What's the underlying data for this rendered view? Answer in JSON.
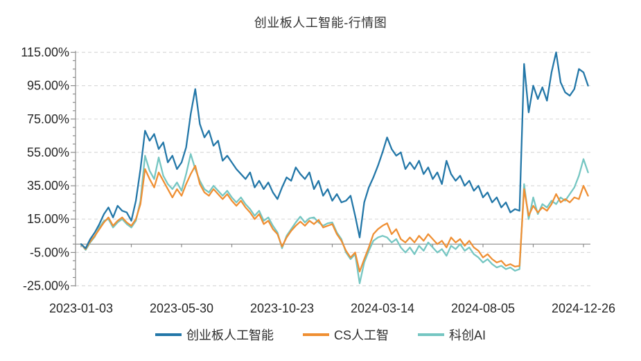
{
  "title": "创业板人工智能-行情图",
  "chart_data": {
    "type": "line",
    "title": "创业板人工智能-行情图",
    "x_tick_labels": [
      "2023-01-03",
      "2023-05-30",
      "2023-10-23",
      "2024-03-14",
      "2024-08-05",
      "2024-12-26"
    ],
    "x_tick_data_indices": [
      0,
      22,
      44,
      66,
      88,
      110
    ],
    "y_tick_labels": [
      "115.00%",
      "95.00%",
      "75.00%",
      "55.00%",
      "35.00%",
      "15.00%",
      "-5.00%",
      "-25.00%"
    ],
    "ylim": [
      -25,
      115
    ],
    "y_major_step": 20,
    "y_minor_step": 5,
    "grid": "horizontal-dashed",
    "zero_line": true,
    "legend_position": "bottom",
    "colors": {
      "grid": "#DADADA",
      "axis": "#8C8C8C",
      "tick_text": "#262626"
    },
    "series": [
      {
        "name": "创业板人工智能",
        "color": "#2377A8",
        "values": [
          0,
          -2.5,
          3,
          7,
          12,
          18,
          22,
          16,
          23,
          20,
          19,
          14,
          26,
          45,
          68,
          62,
          66,
          57,
          61,
          49,
          53,
          45,
          49,
          58,
          78,
          93,
          72,
          64,
          68,
          59,
          62,
          50,
          53,
          49,
          45,
          42,
          39,
          43,
          34,
          38,
          33,
          37,
          31,
          27,
          34,
          40,
          38,
          46,
          42,
          39,
          43,
          33,
          38,
          29,
          33,
          26,
          30,
          25,
          26,
          29,
          17,
          4,
          25,
          34,
          40,
          47,
          55,
          64,
          57,
          53,
          55,
          45,
          49,
          45,
          50,
          42,
          46,
          39,
          43,
          36,
          50,
          42,
          38,
          41,
          35,
          38,
          32,
          35,
          28,
          31,
          25,
          28,
          22,
          25,
          19,
          21,
          20,
          108,
          79,
          95,
          87,
          94,
          86,
          103,
          115,
          97,
          91,
          89,
          93,
          105,
          103,
          95
        ]
      },
      {
        "name": "CS人工智",
        "color": "#EF8F33",
        "values": [
          0,
          -3,
          1.5,
          5,
          9,
          13,
          16,
          11,
          14,
          16,
          13,
          11,
          15,
          24,
          45,
          39,
          34,
          43,
          38,
          33,
          28,
          33,
          29,
          36,
          42,
          47,
          36,
          31,
          29,
          33,
          30,
          27,
          30,
          26,
          23,
          26,
          22,
          19,
          15,
          18,
          12,
          14,
          9,
          6,
          -1.5,
          4,
          8,
          11,
          13.5,
          11,
          14,
          12,
          14.5,
          10,
          11,
          12,
          6,
          2,
          -4,
          -8,
          -5,
          -16.5,
          -9,
          -2,
          6,
          9,
          11,
          12.5,
          6,
          9,
          3,
          1,
          4,
          1,
          5,
          2,
          6,
          3,
          0,
          2,
          -2,
          4,
          1,
          3,
          -1,
          2,
          -2,
          -4,
          -8,
          -6,
          -9,
          -11,
          -10,
          -13,
          -12,
          -13.5,
          -13,
          33,
          17,
          23,
          19,
          22,
          20,
          24,
          30,
          25,
          27,
          25,
          28,
          27,
          35,
          29
        ]
      },
      {
        "name": "科创AI",
        "color": "#75C6C2",
        "values": [
          0,
          -3.5,
          1,
          4.5,
          10,
          14,
          15,
          10,
          13,
          15,
          12,
          10,
          14,
          26,
          53,
          44,
          39,
          52,
          41,
          36,
          33,
          37,
          32,
          42,
          54,
          45,
          38,
          33,
          31,
          35,
          32,
          29,
          32,
          28,
          25,
          28,
          24,
          21,
          17,
          20,
          14,
          16,
          11,
          7,
          -2.5,
          5,
          9,
          13,
          16.5,
          13,
          15.5,
          16,
          13,
          11,
          12.5,
          13,
          7,
          3,
          -5,
          -9,
          -6,
          -23.5,
          -11,
          -4,
          2,
          4,
          5,
          4,
          1,
          3,
          -2,
          -5,
          -2,
          -6,
          -1,
          -4,
          1,
          -2,
          -5,
          -3,
          -7,
          -1,
          -3,
          0,
          -4,
          -2,
          -6,
          -8,
          -11,
          -9,
          -12,
          -14,
          -13,
          -15,
          -14,
          -16,
          -15,
          36,
          15,
          28,
          18,
          24,
          22,
          26,
          24,
          28,
          26,
          30,
          34,
          41,
          51,
          43
        ]
      }
    ]
  }
}
